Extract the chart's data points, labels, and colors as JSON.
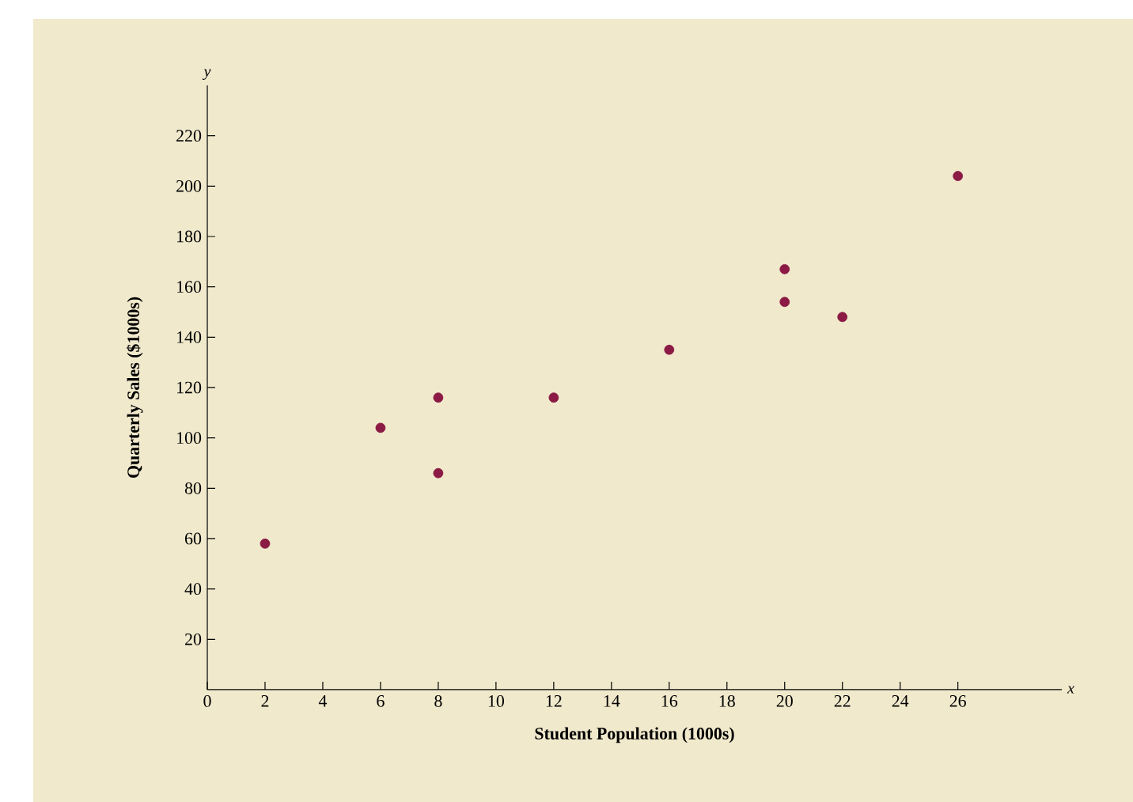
{
  "chart_data": {
    "type": "scatter",
    "xlabel": "Student Population (1000s)",
    "ylabel": "Quarterly Sales ($1000s)",
    "annotations": [
      "y",
      "x"
    ],
    "x": [
      2,
      6,
      8,
      8,
      12,
      16,
      20,
      20,
      22,
      26
    ],
    "values": [
      58,
      104,
      116,
      86,
      116,
      135,
      154,
      167,
      148,
      204
    ],
    "color": "#8b1a44",
    "marker": "circle",
    "grid": false,
    "xlim": [
      0,
      29.6
    ],
    "ylim": [
      0,
      240
    ],
    "xticks": [
      0,
      2,
      4,
      6,
      8,
      10,
      12,
      14,
      16,
      18,
      20,
      22,
      24,
      26
    ],
    "yticks": [
      20,
      40,
      60,
      80,
      100,
      120,
      140,
      160,
      180,
      200,
      220
    ]
  }
}
